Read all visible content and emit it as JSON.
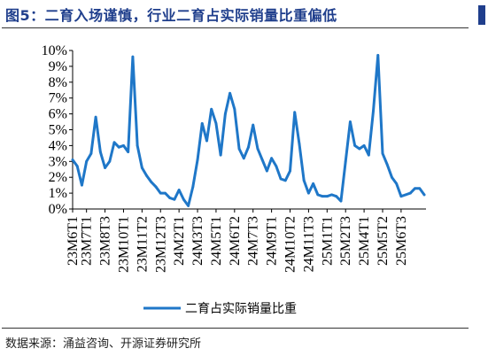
{
  "figure": {
    "title": "图5：二育入场谨慎，行业二育占实际销量比重偏低",
    "source": "数据来源：涌益咨询、开源证券研究所"
  },
  "colors": {
    "title": "#1f3e8c",
    "series": "#1f77c8",
    "axis": "#000000"
  },
  "chart_data": {
    "type": "line",
    "title": "",
    "xlabel": "",
    "ylabel": "",
    "ylim": [
      0,
      10
    ],
    "yticks": [
      "0%",
      "1%",
      "2%",
      "3%",
      "4%",
      "5%",
      "6%",
      "7%",
      "8%",
      "9%",
      "10%"
    ],
    "grid": false,
    "legend_position": "bottom",
    "x_tick_labels": [
      "23M6T1",
      "23M7T1",
      "23M8T3",
      "23M10T1",
      "23M11T2",
      "23M12T3",
      "24M2T1",
      "24M3T3",
      "24M5T1",
      "24M6T2",
      "24M7T3",
      "24M9T1",
      "24M10T2",
      "24M11T3",
      "25M1T1",
      "25M2T3",
      "25M4T1",
      "25M5T2",
      "25M6T3"
    ],
    "x_tick_index": [
      0,
      3,
      7,
      11,
      15,
      19,
      23,
      27,
      31,
      35,
      39,
      43,
      47,
      51,
      55,
      59,
      63,
      67,
      71
    ],
    "series": [
      {
        "name": "二育占实际销量比重",
        "values": [
          3.1,
          2.7,
          1.5,
          3.0,
          3.5,
          5.8,
          3.6,
          2.6,
          3.0,
          4.2,
          3.9,
          4.0,
          3.6,
          9.6,
          4.0,
          2.6,
          2.1,
          1.7,
          1.4,
          1.0,
          1.0,
          0.7,
          0.6,
          1.2,
          0.6,
          0.2,
          1.4,
          3.1,
          5.4,
          4.3,
          6.3,
          5.4,
          3.4,
          6.0,
          7.3,
          6.3,
          3.8,
          3.2,
          3.9,
          5.3,
          3.8,
          3.1,
          2.4,
          3.2,
          2.7,
          1.9,
          1.8,
          2.4,
          6.1,
          4.1,
          1.8,
          1.0,
          1.6,
          0.9,
          0.8,
          0.8,
          0.9,
          0.8,
          0.5,
          3.0,
          5.5,
          4.0,
          3.8,
          4.0,
          3.4,
          6.2,
          9.7,
          3.5,
          2.8,
          2.0,
          1.6,
          0.8,
          0.9,
          1.0,
          1.3,
          1.3,
          0.9
        ]
      }
    ]
  }
}
